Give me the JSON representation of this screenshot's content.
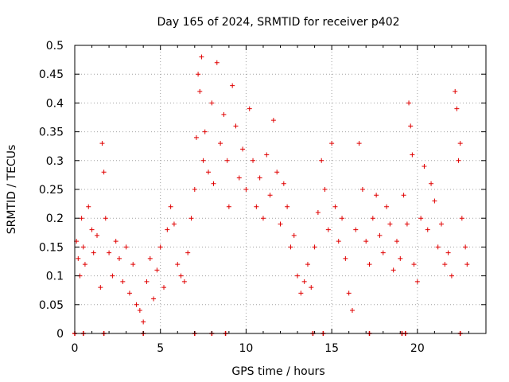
{
  "chart_data": {
    "type": "scatter",
    "title": "Day 165 of 2024, SRMTID for receiver p402",
    "xlabel": "GPS time / hours",
    "ylabel": "SRMTID / TECUs",
    "xlim": [
      0,
      24
    ],
    "ylim": [
      0,
      0.5
    ],
    "grid": true,
    "marker": "+",
    "series_color": "#e00000",
    "xticks": [
      {
        "value": 0,
        "label": "0"
      },
      {
        "value": 5,
        "label": "5"
      },
      {
        "value": 10,
        "label": "10"
      },
      {
        "value": 15,
        "label": "15"
      },
      {
        "value": 20,
        "label": "20"
      }
    ],
    "yticks": [
      {
        "value": 0,
        "label": "0"
      },
      {
        "value": 0.05,
        "label": "0.05"
      },
      {
        "value": 0.1,
        "label": "0.1"
      },
      {
        "value": 0.15,
        "label": "0.15"
      },
      {
        "value": 0.2,
        "label": "0.2"
      },
      {
        "value": 0.25,
        "label": "0.25"
      },
      {
        "value": 0.3,
        "label": "0.3"
      },
      {
        "value": 0.35,
        "label": "0.35"
      },
      {
        "value": 0.4,
        "label": "0.4"
      },
      {
        "value": 0.45,
        "label": "0.45"
      },
      {
        "value": 0.5,
        "label": "0.5"
      }
    ],
    "series": [
      {
        "name": "SRMTID",
        "points": [
          [
            0.1,
            0.16
          ],
          [
            0.2,
            0.13
          ],
          [
            0.3,
            0.1
          ],
          [
            0.4,
            0.2
          ],
          [
            0.5,
            0.15
          ],
          [
            0.6,
            0.12
          ],
          [
            0.8,
            0.22
          ],
          [
            1.0,
            0.18
          ],
          [
            1.1,
            0.14
          ],
          [
            1.3,
            0.17
          ],
          [
            1.5,
            0.08
          ],
          [
            1.6,
            0.33
          ],
          [
            1.7,
            0.28
          ],
          [
            1.8,
            0.2
          ],
          [
            2.0,
            0.14
          ],
          [
            2.2,
            0.1
          ],
          [
            2.4,
            0.16
          ],
          [
            2.6,
            0.13
          ],
          [
            2.8,
            0.09
          ],
          [
            3.0,
            0.15
          ],
          [
            3.2,
            0.07
          ],
          [
            3.4,
            0.12
          ],
          [
            3.6,
            0.05
          ],
          [
            3.8,
            0.04
          ],
          [
            4.0,
            0.02
          ],
          [
            4.2,
            0.09
          ],
          [
            4.4,
            0.13
          ],
          [
            4.6,
            0.06
          ],
          [
            4.8,
            0.11
          ],
          [
            5.0,
            0.15
          ],
          [
            5.2,
            0.08
          ],
          [
            5.4,
            0.18
          ],
          [
            5.6,
            0.22
          ],
          [
            5.8,
            0.19
          ],
          [
            6.0,
            0.12
          ],
          [
            6.2,
            0.1
          ],
          [
            6.4,
            0.09
          ],
          [
            6.6,
            0.14
          ],
          [
            6.8,
            0.2
          ],
          [
            7.0,
            0.25
          ],
          [
            7.1,
            0.34
          ],
          [
            7.2,
            0.45
          ],
          [
            7.3,
            0.42
          ],
          [
            7.4,
            0.48
          ],
          [
            7.5,
            0.3
          ],
          [
            7.6,
            0.35
          ],
          [
            7.8,
            0.28
          ],
          [
            8.0,
            0.4
          ],
          [
            8.1,
            0.26
          ],
          [
            8.3,
            0.47
          ],
          [
            8.5,
            0.33
          ],
          [
            8.7,
            0.38
          ],
          [
            8.9,
            0.3
          ],
          [
            9.0,
            0.22
          ],
          [
            9.2,
            0.43
          ],
          [
            9.4,
            0.36
          ],
          [
            9.6,
            0.27
          ],
          [
            9.8,
            0.32
          ],
          [
            10.0,
            0.25
          ],
          [
            10.2,
            0.39
          ],
          [
            10.4,
            0.3
          ],
          [
            10.6,
            0.22
          ],
          [
            10.8,
            0.27
          ],
          [
            11.0,
            0.2
          ],
          [
            11.2,
            0.31
          ],
          [
            11.4,
            0.24
          ],
          [
            11.6,
            0.37
          ],
          [
            11.8,
            0.28
          ],
          [
            12.0,
            0.19
          ],
          [
            12.2,
            0.26
          ],
          [
            12.4,
            0.22
          ],
          [
            12.6,
            0.15
          ],
          [
            12.8,
            0.17
          ],
          [
            13.0,
            0.1
          ],
          [
            13.2,
            0.07
          ],
          [
            13.4,
            0.09
          ],
          [
            13.6,
            0.12
          ],
          [
            13.8,
            0.08
          ],
          [
            14.0,
            0.15
          ],
          [
            14.2,
            0.21
          ],
          [
            14.4,
            0.3
          ],
          [
            14.6,
            0.25
          ],
          [
            14.8,
            0.18
          ],
          [
            15.0,
            0.33
          ],
          [
            15.2,
            0.22
          ],
          [
            15.4,
            0.16
          ],
          [
            15.6,
            0.2
          ],
          [
            15.8,
            0.13
          ],
          [
            16.0,
            0.07
          ],
          [
            16.2,
            0.04
          ],
          [
            16.4,
            0.18
          ],
          [
            16.6,
            0.33
          ],
          [
            16.8,
            0.25
          ],
          [
            17.0,
            0.16
          ],
          [
            17.2,
            0.12
          ],
          [
            17.4,
            0.2
          ],
          [
            17.6,
            0.24
          ],
          [
            17.8,
            0.17
          ],
          [
            18.0,
            0.14
          ],
          [
            18.2,
            0.22
          ],
          [
            18.4,
            0.19
          ],
          [
            18.6,
            0.11
          ],
          [
            18.8,
            0.16
          ],
          [
            19.0,
            0.13
          ],
          [
            19.2,
            0.24
          ],
          [
            19.4,
            0.19
          ],
          [
            19.5,
            0.4
          ],
          [
            19.6,
            0.36
          ],
          [
            19.7,
            0.31
          ],
          [
            19.8,
            0.12
          ],
          [
            20.0,
            0.09
          ],
          [
            20.2,
            0.2
          ],
          [
            20.4,
            0.29
          ],
          [
            20.6,
            0.18
          ],
          [
            20.8,
            0.26
          ],
          [
            21.0,
            0.23
          ],
          [
            21.2,
            0.15
          ],
          [
            21.4,
            0.19
          ],
          [
            21.6,
            0.12
          ],
          [
            21.8,
            0.14
          ],
          [
            22.0,
            0.1
          ],
          [
            22.2,
            0.42
          ],
          [
            22.3,
            0.39
          ],
          [
            22.4,
            0.3
          ],
          [
            22.5,
            0.33
          ],
          [
            22.6,
            0.2
          ],
          [
            22.8,
            0.15
          ],
          [
            22.9,
            0.12
          ]
        ]
      }
    ],
    "zero_markers_x": [
      0.0,
      0.5,
      1.7,
      4.0,
      7.0,
      8.0,
      8.8,
      13.9,
      14.5,
      17.2,
      19.1,
      19.3,
      22.5
    ]
  }
}
